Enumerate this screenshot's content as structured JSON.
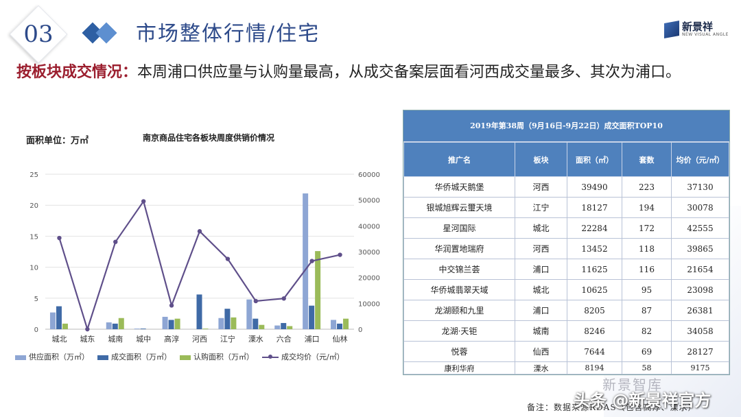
{
  "header": {
    "section_number": "03",
    "title": "市场整体行情/住宅",
    "logo_text": "新景祥",
    "logo_sub": "NEW VISUAL ANGLE"
  },
  "summary": {
    "lead": "按板块成交情况：",
    "text": "本周浦口供应量与认购量最高，从成交备案层面看河西成交量最多、其次为浦口。"
  },
  "chart_meta": {
    "unit_label": "面积单位：万㎡"
  },
  "chart_data": {
    "type": "bar",
    "title": "南京商品住宅各板块周度供销价情况",
    "categories": [
      "城北",
      "城东",
      "城南",
      "城中",
      "高淳",
      "河西",
      "江宁",
      "溧水",
      "六合",
      "浦口",
      "仙林"
    ],
    "series": [
      {
        "name": "供应面积（万㎡）",
        "type": "bar",
        "axis": "left",
        "color": "#8ea6d4",
        "values": [
          2.7,
          0,
          1.1,
          0.1,
          2.0,
          0,
          1.8,
          4.8,
          0.6,
          21.9,
          1.5
        ]
      },
      {
        "name": "成交面积（万㎡）",
        "type": "bar",
        "axis": "left",
        "color": "#3f6aa6",
        "values": [
          3.7,
          0,
          0.9,
          0.1,
          1.5,
          5.6,
          3.3,
          1.7,
          1.0,
          3.8,
          0.9
        ]
      },
      {
        "name": "认购面积（万㎡）",
        "type": "bar",
        "axis": "left",
        "color": "#9bbb59",
        "values": [
          0.9,
          0,
          1.8,
          0,
          1.7,
          0.1,
          1.9,
          0.7,
          0.5,
          12.6,
          1.7
        ]
      },
      {
        "name": "成交均价（元/㎡）",
        "type": "line",
        "axis": "right",
        "color": "#5f4f8a",
        "values": [
          35300,
          0,
          33800,
          49500,
          9200,
          37900,
          27200,
          10900,
          11900,
          26400,
          28800
        ]
      }
    ],
    "y_left": {
      "min": 0,
      "max": 25,
      "ticks": [
        0,
        5,
        10,
        15,
        20,
        25
      ]
    },
    "y_right": {
      "min": 0,
      "max": 60000,
      "ticks": [
        0,
        10000,
        20000,
        30000,
        40000,
        50000,
        60000
      ]
    },
    "grid": true,
    "legend": "bottom"
  },
  "table": {
    "caption": "2019年第38周（9月16日-9月22日）成交面积TOP10",
    "headers": [
      "推广名",
      "板块",
      "面积（㎡）",
      "套数",
      "均价（元/㎡）"
    ],
    "rows": [
      [
        "华侨城天鹅堡",
        "河西",
        "39490",
        "223",
        "37130"
      ],
      [
        "银城旭辉云璽天境",
        "江宁",
        "18127",
        "194",
        "30078"
      ],
      [
        "星河国际",
        "城北",
        "22284",
        "172",
        "42555"
      ],
      [
        "华润置地瑞府",
        "河西",
        "13452",
        "118",
        "39865"
      ],
      [
        "中交锦兰荟",
        "浦口",
        "11625",
        "116",
        "21654"
      ],
      [
        "华侨城翡翠天域",
        "城北",
        "10625",
        "95",
        "23098"
      ],
      [
        "龙湖颐和九里",
        "浦口",
        "8205",
        "87",
        "26381"
      ],
      [
        "龙湖·天钜",
        "城南",
        "8246",
        "82",
        "34058"
      ],
      [
        "悦蓉",
        "仙西",
        "7644",
        "69",
        "28127"
      ],
      [
        "康利华府",
        "溧水",
        "8194",
        "58",
        "9175"
      ]
    ]
  },
  "footer": {
    "note": "备注：数据来源RDAS（包含高淳、溧水）",
    "watermark_1": "新景智库",
    "watermark_2": "头条 @新景祥官方"
  }
}
